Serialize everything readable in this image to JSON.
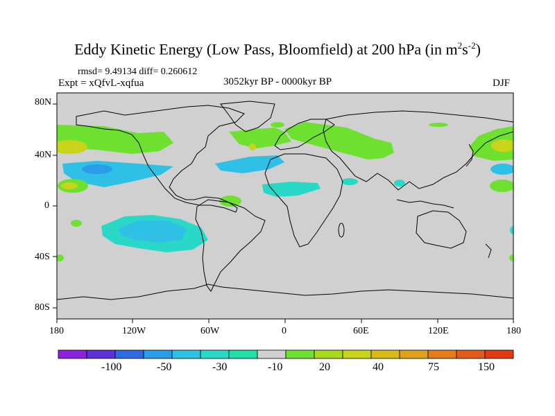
{
  "title": {
    "main": "Eddy Kinetic Energy (Low Pass, Bloomfield) at 200 hPa (in m",
    "sup1": "2",
    "mid": "s",
    "sup2": "-2",
    "end": ")"
  },
  "stats": {
    "text": "rmsd= 9.49134 diff= 0.260612"
  },
  "expt": {
    "text": "Expt = xQfvL-xqfua"
  },
  "period": {
    "text": "3052kyr BP - 0000kyr BP"
  },
  "season": {
    "text": "DJF"
  },
  "axes": {
    "x_ticks": [
      "180",
      "120W",
      "60W",
      "0",
      "60E",
      "120E",
      "180"
    ],
    "y_ticks": [
      "80N",
      "40N",
      "0",
      "40S",
      "80S"
    ]
  },
  "colorbar": {
    "labels": [
      "-100",
      "-50",
      "-30",
      "-10",
      "20",
      "40",
      "75",
      "150"
    ],
    "colors": [
      "#8c22dc",
      "#5a32d6",
      "#2f6be0",
      "#2a9ce8",
      "#2fc0e6",
      "#2ad8c8",
      "#1ee0a8",
      "#d0d0d0",
      "#6ee030",
      "#a8d820",
      "#c8d41a",
      "#d8b81a",
      "#e0a01a",
      "#e37c1a",
      "#e35a1a",
      "#e03a12"
    ]
  },
  "map": {
    "background_color": "#d0d0d0",
    "ocean_color": "#d0d0d0",
    "coast_color": "#000000"
  }
}
